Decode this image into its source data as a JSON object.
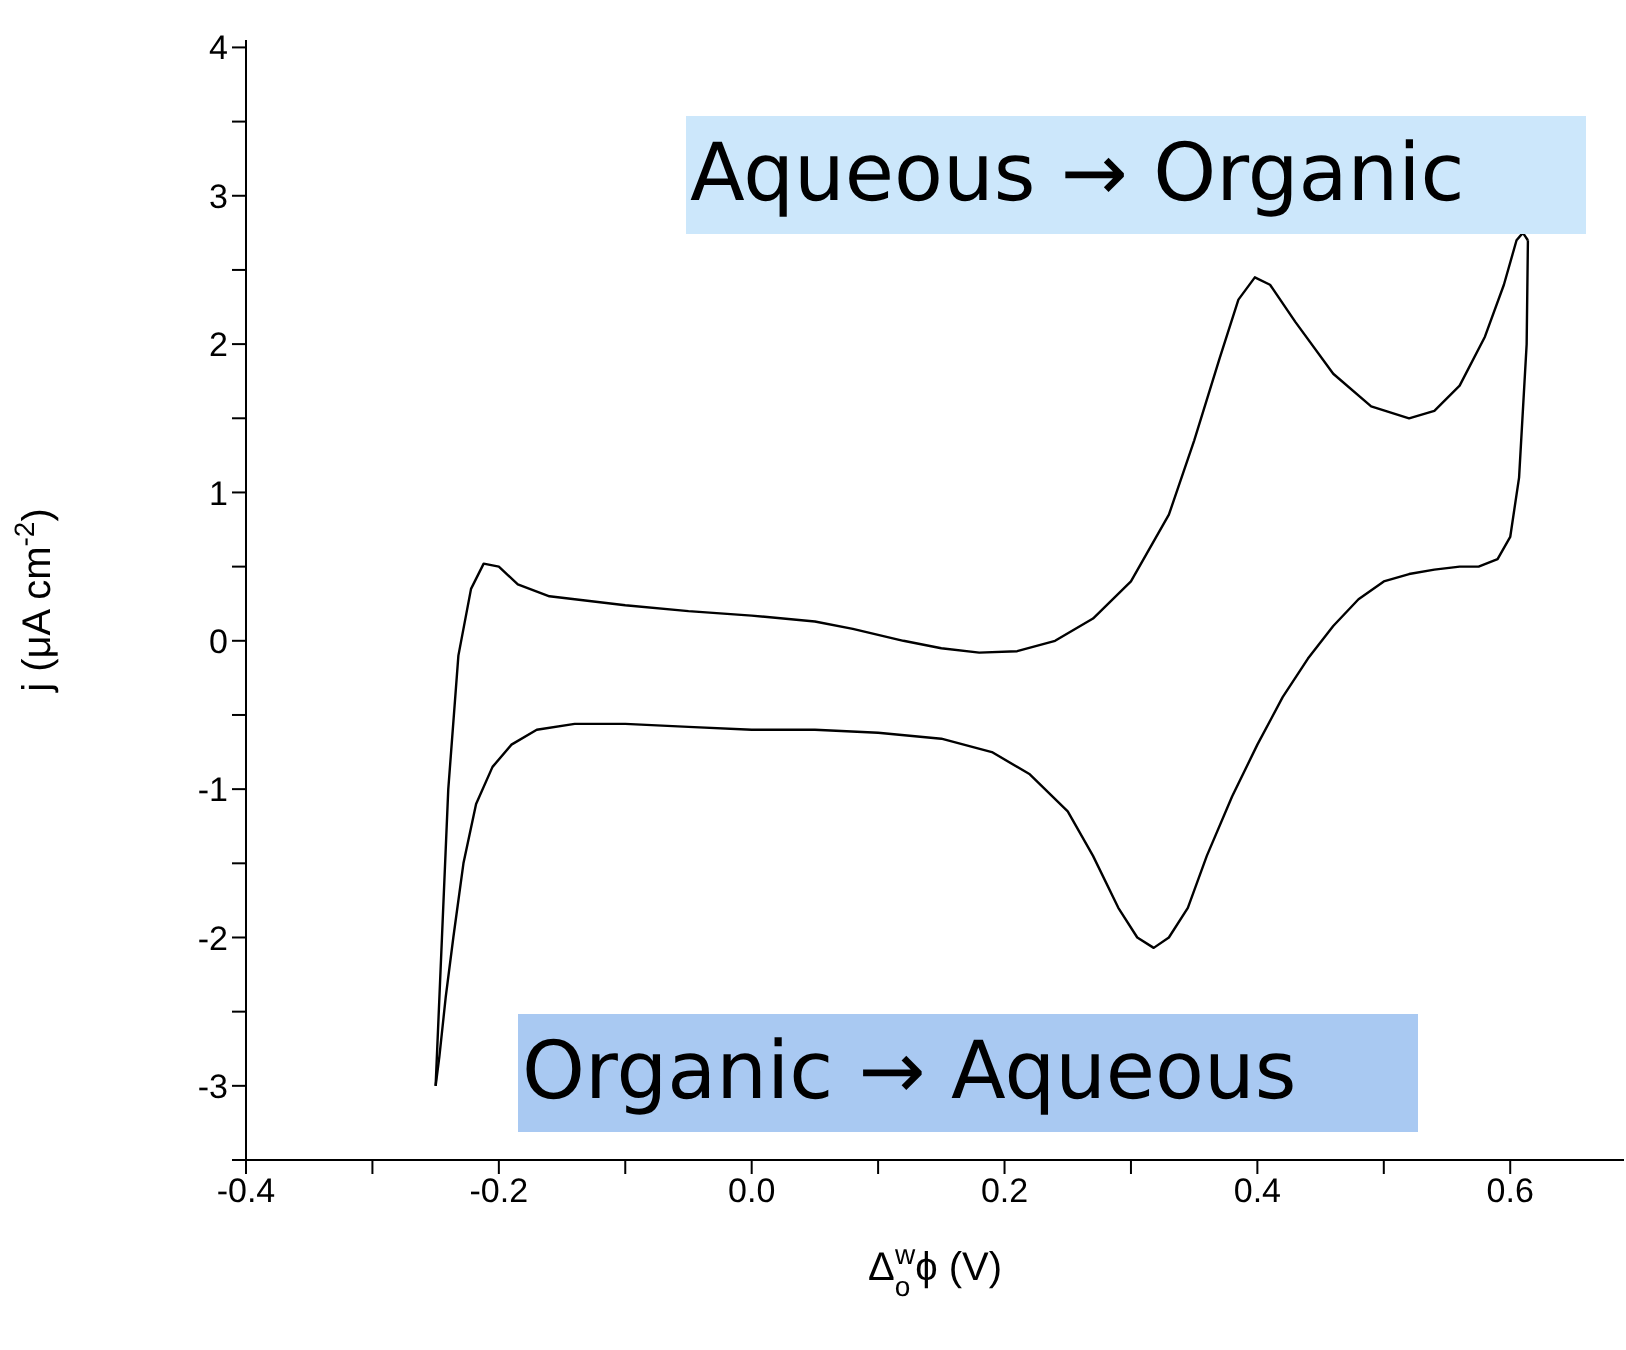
{
  "chart_data": {
    "type": "line",
    "xlabel": "Δ$_{o}$$^{w}$ϕ (V)",
    "ylabel": "j (μA cm$^{-2}$)",
    "annotations": [
      "Aqueous → Organic",
      "Organic → Aqueous"
    ],
    "xlim": [
      -0.4,
      0.69
    ],
    "ylim": [
      -3.5,
      4.05
    ],
    "xticks": [
      -0.4,
      {
        "value": -0.3,
        "label": null
      },
      -0.2,
      {
        "value": -0.1,
        "label": null
      },
      {
        "value": 0,
        "label": "0.0"
      },
      {
        "value": 0.1,
        "label": null
      },
      0.2,
      {
        "value": 0.3,
        "label": null
      },
      0.4,
      {
        "value": 0.5,
        "label": null
      },
      0.6
    ],
    "yticks": [
      {
        "value": -3.5,
        "label": null
      },
      -3,
      {
        "value": -2.5,
        "label": null
      },
      -2,
      {
        "value": -1.5,
        "label": null
      },
      -1,
      {
        "value": -0.5,
        "label": null
      },
      0,
      {
        "value": 0.5,
        "label": null
      },
      1,
      {
        "value": 1.5,
        "label": null
      },
      2,
      {
        "value": 2.5,
        "label": null
      },
      3,
      {
        "value": 3.5,
        "label": null
      },
      4
    ],
    "grid": false,
    "marker": "none",
    "line_style": "solid",
    "series": [
      {
        "color": "#000000",
        "x": [
          -0.25,
          -0.245,
          -0.24,
          -0.232,
          -0.222,
          -0.212,
          -0.2,
          -0.185,
          -0.16,
          -0.13,
          -0.1,
          -0.05,
          0.0,
          0.05,
          0.08,
          0.12,
          0.15,
          0.18,
          0.21,
          0.24,
          0.27,
          0.3,
          0.33,
          0.35,
          0.37,
          0.385,
          0.398,
          0.41,
          0.43,
          0.46,
          0.49,
          0.52,
          0.54,
          0.56,
          0.58,
          0.595,
          0.605,
          0.61,
          0.614
        ],
        "values": [
          -3.0,
          -2.0,
          -1.0,
          -0.1,
          0.35,
          0.52,
          0.5,
          0.38,
          0.3,
          0.27,
          0.24,
          0.2,
          0.17,
          0.13,
          0.08,
          0.0,
          -0.05,
          -0.08,
          -0.07,
          0.0,
          0.15,
          0.4,
          0.85,
          1.35,
          1.9,
          2.3,
          2.45,
          2.4,
          2.15,
          1.8,
          1.58,
          1.5,
          1.55,
          1.72,
          2.05,
          2.4,
          2.7,
          2.75,
          2.7
        ]
      },
      {
        "color": "#000000",
        "x": [
          0.614,
          0.613,
          0.607,
          0.6,
          0.59,
          0.575,
          0.56,
          0.54,
          0.52,
          0.5,
          0.48,
          0.46,
          0.44,
          0.42,
          0.4,
          0.38,
          0.36,
          0.345,
          0.33,
          0.318,
          0.305,
          0.29,
          0.27,
          0.25,
          0.22,
          0.19,
          0.15,
          0.1,
          0.05,
          0.0,
          -0.05,
          -0.1,
          -0.14,
          -0.17,
          -0.19,
          -0.205,
          -0.218,
          -0.228,
          -0.236,
          -0.242,
          -0.247,
          -0.25
        ],
        "values": [
          2.7,
          2.0,
          1.1,
          0.7,
          0.55,
          0.5,
          0.5,
          0.48,
          0.45,
          0.4,
          0.28,
          0.1,
          -0.12,
          -0.38,
          -0.7,
          -1.05,
          -1.45,
          -1.8,
          -2.0,
          -2.07,
          -2.0,
          -1.8,
          -1.45,
          -1.15,
          -0.9,
          -0.75,
          -0.66,
          -0.62,
          -0.6,
          -0.6,
          -0.58,
          -0.56,
          -0.56,
          -0.6,
          -0.7,
          -0.85,
          -1.1,
          -1.5,
          -2.0,
          -2.4,
          -2.8,
          -3.0
        ]
      }
    ]
  }
}
